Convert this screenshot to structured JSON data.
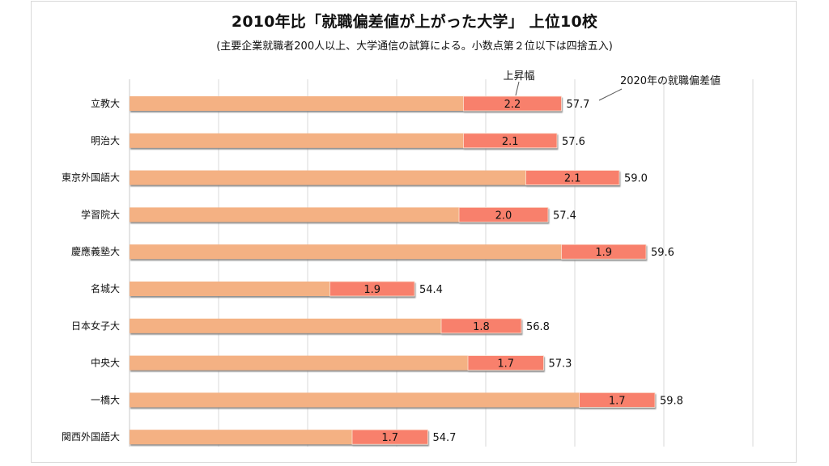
{
  "chart_data": {
    "type": "bar",
    "orientation": "horizontal",
    "stacked": true,
    "title": "2010年比「就職偏差値が上がった大学」 上位10校",
    "subtitle": "(主要企業就職者200人以上、大学通信の試算による。小数点第２位以下は四捨五入)",
    "xlabel": "",
    "ylabel": "",
    "xlim": [
      48,
      63
    ],
    "x_gridlines": [
      48,
      50,
      52,
      54,
      56,
      58,
      60,
      62
    ],
    "grid": true,
    "tick_labels_visible": false,
    "categories": [
      "立教大",
      "明治大",
      "東京外国語大",
      "学習院大",
      "慶應義塾大",
      "名城大",
      "日本女子大",
      "中央大",
      "一橋大",
      "関西外国語大"
    ],
    "series": [
      {
        "name": "2010年の就職偏差値",
        "color": "#f4b183",
        "values": [
          55.5,
          55.5,
          56.9,
          55.4,
          57.7,
          52.5,
          55.0,
          55.6,
          58.1,
          53.0
        ]
      },
      {
        "name": "上昇幅",
        "color": "#f8806c",
        "values": [
          2.2,
          2.1,
          2.1,
          2.0,
          1.9,
          1.9,
          1.8,
          1.7,
          1.7,
          1.7
        ]
      }
    ],
    "totals": {
      "name": "2020年の就職偏差値",
      "values": [
        57.7,
        57.6,
        59.0,
        57.4,
        59.6,
        54.4,
        56.8,
        57.3,
        59.8,
        54.7
      ]
    },
    "annotations": [
      {
        "text": "上昇幅",
        "points_to": "上昇幅 label of 立教大"
      },
      {
        "text": "2020年の就職偏差値",
        "points_to": "total label of 立教大"
      }
    ]
  },
  "colors": {
    "base": "#f4b183",
    "rise": "#f8806c",
    "grid": "#d9d9d9",
    "shadow": "#8c8c8c"
  }
}
